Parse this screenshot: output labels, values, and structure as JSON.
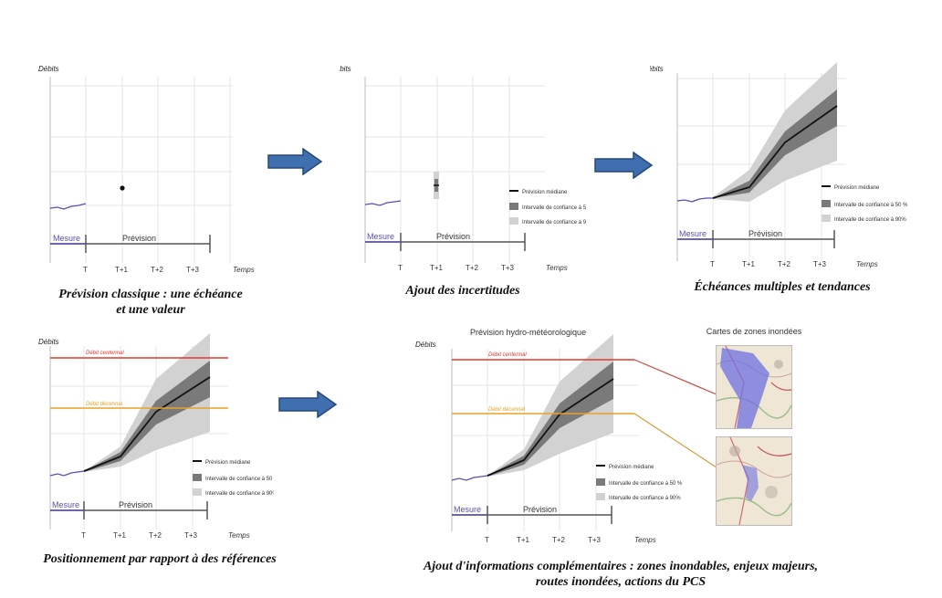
{
  "axis": {
    "ylabel": "Débits",
    "xlabel": "Temps",
    "ticks": [
      "T",
      "T+1",
      "T+2",
      "T+3"
    ]
  },
  "timeline": {
    "measure": "Mesure",
    "forecast": "Prévision"
  },
  "legend": {
    "median": "Prévision médiane",
    "ci50": "Intervalle de confiance à 50 %",
    "ci90": "Intervalle de confiance à 90%"
  },
  "references": {
    "centennial": "Débit centennal",
    "decennial": "Débit décennal"
  },
  "panel5": {
    "title": "Prévision hydro-météorologique",
    "maps_title": "Cartes de zones inondées"
  },
  "captions": {
    "p1_line1": "Prévision classique : une échéance",
    "p1_line2": "et une valeur",
    "p2": "Ajout des incertitudes",
    "p3": "Échéances multiples et tendances",
    "p4": "Positionnement par rapport à des références",
    "p5_line1": "Ajout d'informations complémentaires : zones inondables, enjeux majeurs,",
    "p5_line2": "routes inondées, actions du PCS"
  },
  "colors": {
    "measure": "#5a4fb0",
    "ci90": "#d2d2d2",
    "ci50": "#7a7a7a",
    "median": "#111111",
    "centennial": "#e03a2f",
    "decennial": "#e8a12a",
    "arrow": "#3f6fae"
  },
  "chart_data": [
    {
      "type": "line",
      "panel": "Prévision classique",
      "x": [
        "T+1"
      ],
      "series": [
        {
          "values": [
            0.35
          ]
        }
      ]
    },
    {
      "type": "area",
      "panel": "Ajout des incertitudes",
      "x": [
        "T+1"
      ]
    },
    {
      "type": "area",
      "panel": "Échéances multiples et tendances",
      "x": [
        "T",
        "T+1",
        "T+2",
        "T+3"
      ]
    },
    {
      "type": "area",
      "panel": "Positionnement par rapport à des références",
      "x": [
        "T",
        "T+1",
        "T+2",
        "T+3"
      ]
    },
    {
      "type": "area",
      "panel": "Ajout d'informations complémentaires",
      "x": [
        "T",
        "T+1",
        "T+2",
        "T+3"
      ]
    }
  ]
}
